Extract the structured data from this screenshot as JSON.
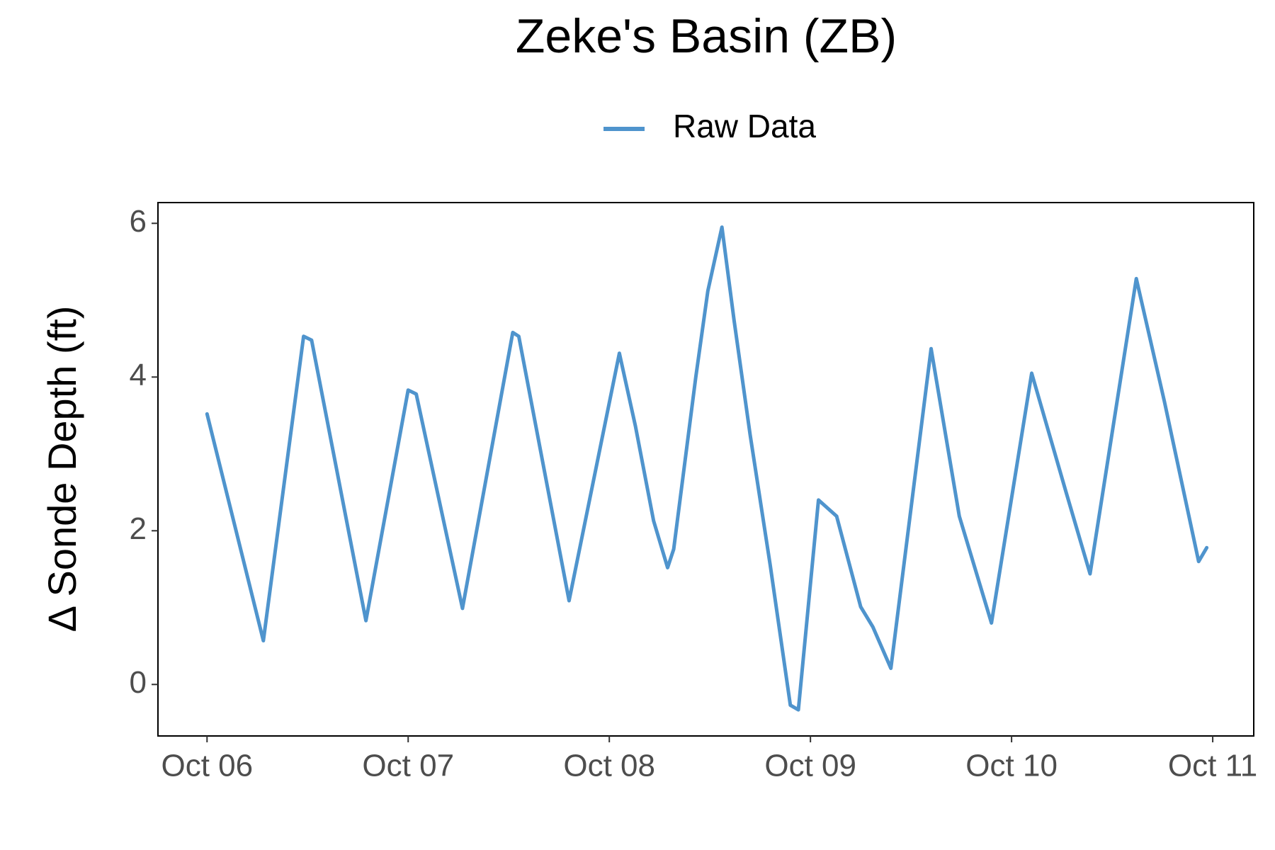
{
  "chart_data": {
    "type": "line",
    "title": "Zeke's Basin (ZB)",
    "y_label": "Δ Sonde Depth (ft)",
    "xlim": [
      -0.244,
      5.204
    ],
    "ylim": [
      -0.67,
      6.27
    ],
    "xticks": [
      {
        "value": 0,
        "label": "Oct 06"
      },
      {
        "value": 1,
        "label": "Oct 07"
      },
      {
        "value": 2,
        "label": "Oct 08"
      },
      {
        "value": 3,
        "label": "Oct 09"
      },
      {
        "value": 4,
        "label": "Oct 10"
      },
      {
        "value": 5,
        "label": "Oct 11"
      }
    ],
    "yticks": [
      0,
      2,
      4,
      6
    ],
    "legend": "top",
    "series": [
      {
        "name": "Raw Data",
        "color": "#4f94cd",
        "x": [
          0,
          0.28,
          0.48,
          0.52,
          0.79,
          1.0,
          1.04,
          1.27,
          1.52,
          1.55,
          1.8,
          2.05,
          2.13,
          2.22,
          2.29,
          2.32,
          2.43,
          2.49,
          2.56,
          2.62,
          2.7,
          2.8,
          2.9,
          2.94,
          3.04,
          3.13,
          3.25,
          3.31,
          3.4,
          3.6,
          3.74,
          3.9,
          4.1,
          4.27,
          4.39,
          4.62,
          4.76,
          4.93,
          4.97
        ],
        "values": [
          3.52,
          0.57,
          4.53,
          4.48,
          0.83,
          3.83,
          3.78,
          0.99,
          4.58,
          4.53,
          1.09,
          4.31,
          3.36,
          2.13,
          1.52,
          1.76,
          4.0,
          5.12,
          5.95,
          4.74,
          3.25,
          1.55,
          -0.27,
          -0.33,
          2.4,
          2.19,
          1.01,
          0.75,
          0.21,
          4.37,
          2.19,
          0.8,
          4.05,
          2.51,
          1.44,
          5.28,
          3.68,
          1.6,
          1.78
        ]
      }
    ]
  }
}
